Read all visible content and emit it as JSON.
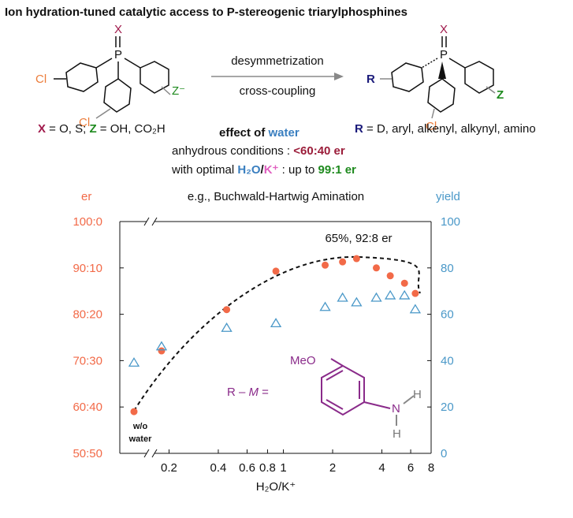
{
  "scheme": {
    "left_atoms": [
      "X",
      "P",
      "Cl",
      "Cl",
      "Z⁻"
    ],
    "right_atoms": [
      "X",
      "P",
      "R",
      "Cl",
      "Z"
    ],
    "arrow_top": "desymmetrization",
    "arrow_bottom": "cross-coupling",
    "left_note": [
      "X",
      " = O, S; ",
      "Z",
      " = OH, CO₂H"
    ],
    "right_note": [
      "R",
      " = D, aryl, alkenyl, alkynyl, amino"
    ],
    "effect": [
      "effect of ",
      "water"
    ],
    "anhydrous": [
      "anhydrous conditions : ",
      "<60:40 er"
    ],
    "optimal": [
      "with optimal ",
      "H₂O",
      "/",
      "K⁺",
      " : up to ",
      "99:1 er"
    ],
    "example": "e.g., Buchwald-Hartwig Amination",
    "reagent": [
      "R – ",
      "M",
      " ="
    ],
    "reagent_atoms": [
      "MeO",
      "N",
      "H",
      "H"
    ]
  },
  "chart_data": {
    "type": "scatter",
    "title": "Ion hydration-tuned catalytic access to P-stereogenic triarylphosphines",
    "xlabel": "H₂O/K⁺",
    "ylabel": "er",
    "y2label": "yield",
    "xscale": "log",
    "xlim": [
      0.1,
      8
    ],
    "xticks": [
      0.2,
      0.4,
      0.6,
      0.8,
      1,
      2,
      4,
      6,
      8
    ],
    "ylim": [
      50,
      100
    ],
    "yticks": [
      {
        "value": 50,
        "label": "50:50"
      },
      {
        "value": 60,
        "label": "60:40"
      },
      {
        "value": 70,
        "label": "70:30"
      },
      {
        "value": 80,
        "label": "80:20"
      },
      {
        "value": 90,
        "label": "90:10"
      },
      {
        "value": 100,
        "label": "100:0"
      }
    ],
    "y2lim": [
      0,
      100
    ],
    "y2ticks": [
      0,
      20,
      40,
      60,
      80,
      100
    ],
    "x": [
      0.18,
      0.45,
      0.9,
      1.8,
      2.3,
      2.8,
      3.7,
      4.5,
      5.5,
      6.4
    ],
    "series": [
      {
        "marker": "circle",
        "color": "#f26a48",
        "values": [
          72.1,
          81,
          89.3,
          90.6,
          91.3,
          92,
          90,
          88.3,
          86.7,
          84.5
        ]
      },
      {
        "marker": "triangle",
        "color": "#4a98c8",
        "axis": "y2",
        "values": [
          46,
          54,
          56,
          63,
          67,
          65,
          67,
          68,
          68,
          62
        ]
      }
    ],
    "reference_point": {
      "label": [
        "w/o",
        "water"
      ],
      "er": 59,
      "yield": 39
    },
    "annotation": "65%, 92:8 er"
  }
}
